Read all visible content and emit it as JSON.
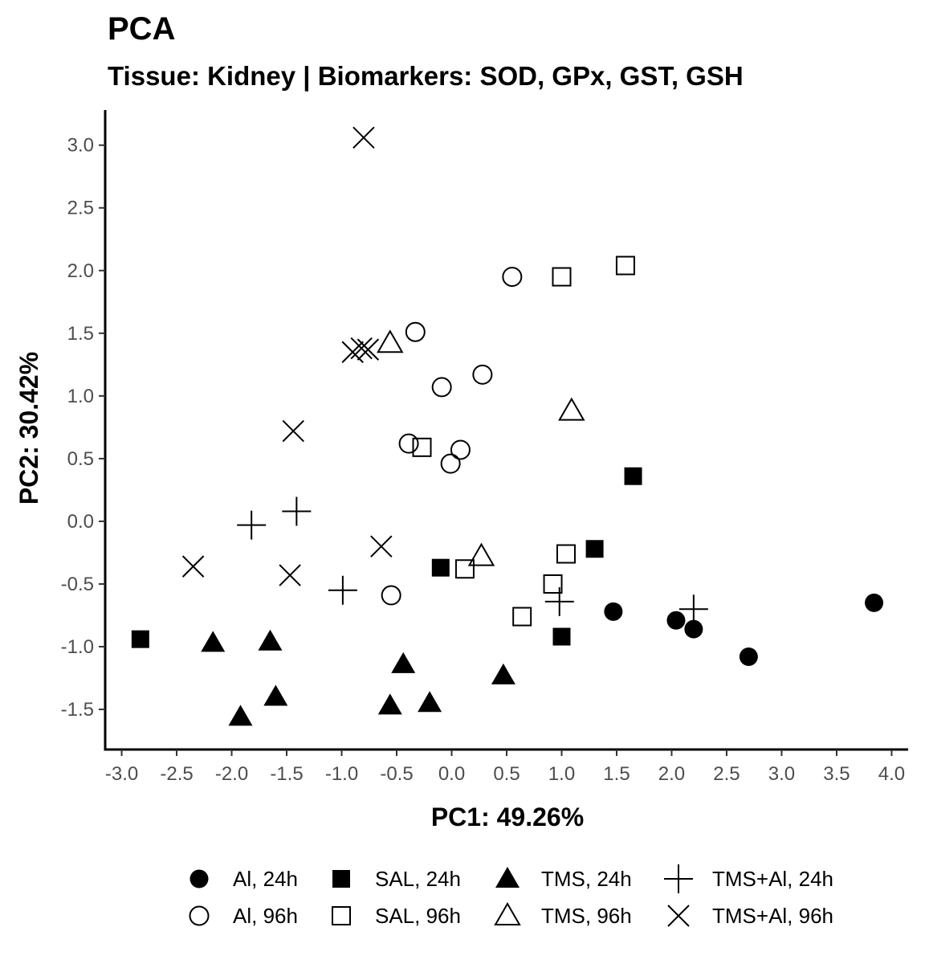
{
  "chart_data": {
    "type": "scatter",
    "title": "PCA",
    "subtitle": "Tissue: Kidney | Biomarkers: SOD, GPx, GST, GSH",
    "xlabel": "PC1: 49.26%",
    "ylabel": "PC2: 30.42%",
    "xlim": [
      -3.15,
      4.15
    ],
    "ylim": [
      -1.82,
      3.28
    ],
    "xticks": [
      "-3.0",
      "-2.5",
      "-2.0",
      "-1.5",
      "-1.0",
      "-0.5",
      "0.0",
      "0.5",
      "1.0",
      "1.5",
      "2.0",
      "2.5",
      "3.0",
      "3.5",
      "4.0"
    ],
    "yticks": [
      "-1.5",
      "-1.0",
      "-0.5",
      "0.0",
      "0.5",
      "1.0",
      "1.5",
      "2.0",
      "2.5",
      "3.0"
    ],
    "grid": false,
    "legend_position": "bottom",
    "series": [
      {
        "name": "Al, 24h",
        "shape": "circle-filled",
        "points": [
          [
            1.47,
            -0.72
          ],
          [
            2.04,
            -0.79
          ],
          [
            2.2,
            -0.86
          ],
          [
            2.7,
            -1.08
          ],
          [
            3.84,
            -0.65
          ]
        ]
      },
      {
        "name": "Al, 96h",
        "shape": "circle-open",
        "points": [
          [
            0.55,
            1.95
          ],
          [
            -0.33,
            1.51
          ],
          [
            0.28,
            1.17
          ],
          [
            -0.09,
            1.07
          ],
          [
            -0.39,
            0.62
          ],
          [
            0.08,
            0.57
          ],
          [
            -0.01,
            0.46
          ],
          [
            -0.55,
            -0.59
          ]
        ]
      },
      {
        "name": "SAL, 24h",
        "shape": "square-filled",
        "points": [
          [
            1.65,
            0.36
          ],
          [
            1.3,
            -0.22
          ],
          [
            -0.1,
            -0.37
          ],
          [
            1.0,
            -0.92
          ],
          [
            -2.83,
            -0.94
          ]
        ]
      },
      {
        "name": "SAL, 96h",
        "shape": "square-open",
        "points": [
          [
            1.58,
            2.04
          ],
          [
            1.0,
            1.95
          ],
          [
            -0.27,
            0.59
          ],
          [
            0.12,
            -0.38
          ],
          [
            1.04,
            -0.26
          ],
          [
            0.92,
            -0.5
          ],
          [
            0.64,
            -0.76
          ]
        ]
      },
      {
        "name": "TMS, 24h",
        "shape": "triangle-filled",
        "points": [
          [
            -2.17,
            -0.97
          ],
          [
            -1.65,
            -0.96
          ],
          [
            -1.6,
            -1.4
          ],
          [
            -1.92,
            -1.56
          ],
          [
            -0.44,
            -1.14
          ],
          [
            -0.56,
            -1.47
          ],
          [
            -0.2,
            -1.45
          ],
          [
            0.47,
            -1.23
          ]
        ]
      },
      {
        "name": "TMS, 96h",
        "shape": "triangle-open",
        "points": [
          [
            -0.56,
            1.42
          ],
          [
            1.09,
            0.88
          ],
          [
            0.27,
            -0.28
          ]
        ]
      },
      {
        "name": "TMS+Al, 24h",
        "shape": "plus",
        "points": [
          [
            -1.41,
            0.08
          ],
          [
            -1.82,
            -0.03
          ],
          [
            -0.99,
            -0.55
          ],
          [
            0.98,
            -0.64
          ],
          [
            2.2,
            -0.7
          ]
        ]
      },
      {
        "name": "TMS+Al, 96h",
        "shape": "cross",
        "points": [
          [
            -0.8,
            3.06
          ],
          [
            -0.9,
            1.35
          ],
          [
            -0.82,
            1.38
          ],
          [
            -0.76,
            1.37
          ],
          [
            -1.44,
            0.72
          ],
          [
            -0.64,
            -0.2
          ],
          [
            -2.35,
            -0.36
          ],
          [
            -1.47,
            -0.43
          ]
        ]
      }
    ]
  }
}
